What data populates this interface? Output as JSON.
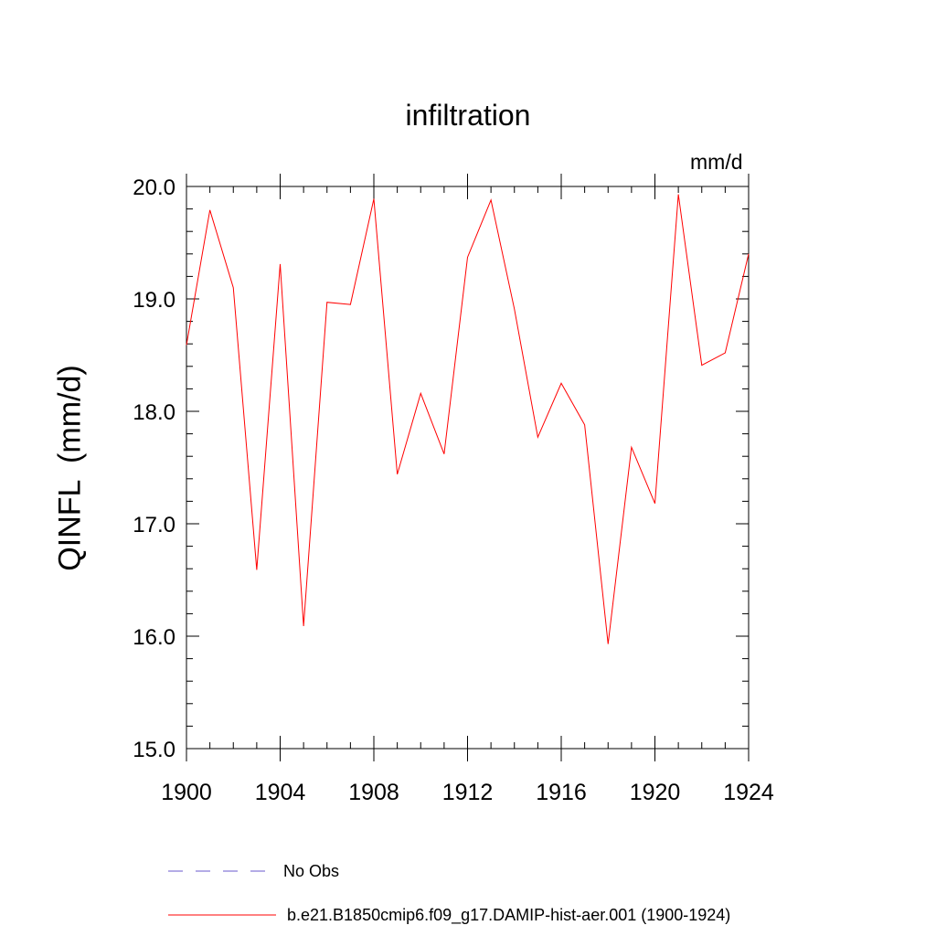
{
  "chart_data": {
    "type": "line",
    "title": "infiltration",
    "units_label": "mm/d",
    "ylabel": "QINFL  (mm/d)",
    "xlim": [
      1900,
      1924
    ],
    "ylim": [
      15.0,
      20.0
    ],
    "x_ticks": [
      1900,
      1904,
      1908,
      1912,
      1916,
      1920,
      1924
    ],
    "y_ticks": [
      "15.0",
      "16.0",
      "17.0",
      "18.0",
      "19.0",
      "20.0"
    ],
    "series": [
      {
        "name": "b.e21.B1850cmip6.f09_g17.DAMIP-hist-aer.001 (1900-1924)",
        "color": "#ff0000",
        "x": [
          1900,
          1901,
          1902,
          1903,
          1904,
          1905,
          1906,
          1907,
          1908,
          1909,
          1910,
          1911,
          1912,
          1913,
          1914,
          1915,
          1916,
          1917,
          1918,
          1919,
          1920,
          1921,
          1922,
          1923,
          1924
        ],
        "values": [
          18.59,
          19.79,
          19.1,
          16.59,
          19.31,
          16.09,
          18.97,
          18.95,
          19.89,
          17.44,
          18.16,
          17.62,
          19.37,
          19.88,
          18.91,
          17.77,
          18.25,
          17.88,
          15.93,
          17.68,
          17.18,
          19.93,
          18.41,
          18.52,
          19.4
        ]
      }
    ],
    "legend": [
      {
        "label": "No Obs",
        "style": "dashed",
        "color": "#6a5acd"
      },
      {
        "label": "b.e21.B1850cmip6.f09_g17.DAMIP-hist-aer.001 (1900-1924)",
        "style": "solid",
        "color": "#ff0000"
      }
    ],
    "legend_position": "bottom",
    "grid": false
  }
}
